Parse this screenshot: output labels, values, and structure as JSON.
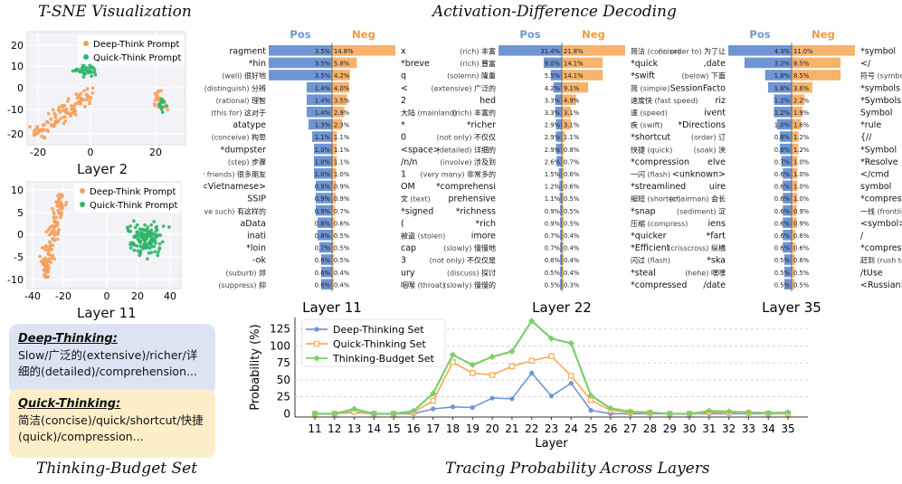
{
  "titles": {
    "tsne": "T-SNE Visualization",
    "decoding": "Activation-Difference Decoding",
    "budget": "Thinking-Budget Set",
    "tracing": "Tracing Probability Across Layers"
  },
  "tsne": {
    "legend_deep": "Deep-Think Prompt",
    "legend_quick": "Quick-Think Prompt",
    "colors": {
      "deep": "#f5a05a",
      "quick": "#2fb66a"
    },
    "panels": [
      {
        "label": "Layer 2",
        "xticks": [
          "-20",
          "0",
          "20"
        ],
        "yticks": [
          "20",
          "10",
          "0",
          "-10",
          "-20"
        ]
      },
      {
        "label": "Layer 11",
        "xticks": [
          "-40",
          "-20",
          "0",
          "20",
          "40"
        ],
        "yticks": [
          "10",
          "5",
          "0",
          "-5",
          "-10"
        ]
      }
    ]
  },
  "budget": {
    "deep_title": "Deep-Thinking:",
    "deep_text": "Slow/广泛的(extensive)/richer/详细的(detailed)/comprehension...",
    "quick_title": "Quick-Thinking:",
    "quick_text": "简洁(concise)/quick/shortcut/快捷(quick)/compression..."
  },
  "decoding": {
    "pos_label": "Pos",
    "neg_label": "Neg",
    "colors": {
      "pos": "#6f95d4",
      "neg": "#f7b26b"
    },
    "panels": [
      {
        "layer": "Layer 11",
        "rows": [
          {
            "l": "ragment",
            "lg": "",
            "pv": "3.5%",
            "p": 3.5,
            "nv": "14.8%",
            "n": 14.8,
            "r": "x",
            "rg": ""
          },
          {
            "l": "*hin",
            "lg": "",
            "pv": "3.5%",
            "p": 3.5,
            "nv": "5.8%",
            "n": 5.8,
            "r": "*breve",
            "rg": ""
          },
          {
            "l": "很好地",
            "lg": "(well)",
            "pv": "3.5%",
            "p": 3.5,
            "nv": "4.2%",
            "n": 4.2,
            "r": "q",
            "rg": ""
          },
          {
            "l": "分辨",
            "lg": "(distinguish)",
            "pv": "1.4%",
            "p": 1.4,
            "nv": "4.0%",
            "n": 4.0,
            "r": "<",
            "rg": ""
          },
          {
            "l": "理智",
            "lg": "(rational)",
            "pv": "1.4%",
            "p": 1.4,
            "nv": "3.5%",
            "n": 3.5,
            "r": "2",
            "rg": ""
          },
          {
            "l": "这对于",
            "lg": "(this for)",
            "pv": "1.4%",
            "p": 1.4,
            "nv": "2.9%",
            "n": 2.9,
            "r": "大陆",
            "rg": "(mainland)"
          },
          {
            "l": "atatype",
            "lg": "",
            "pv": "1.3%",
            "p": 1.3,
            "nv": "2.3%",
            "n": 2.3,
            "r": "*",
            "rg": ""
          },
          {
            "l": "构思",
            "lg": "(conceive)",
            "pv": "1.1%",
            "p": 1.1,
            "nv": "1.1%",
            "n": 1.1,
            "r": "0",
            "rg": ""
          },
          {
            "l": "*dumpster",
            "lg": "",
            "pv": "1.0%",
            "p": 1.0,
            "nv": "1.1%",
            "n": 1.1,
            "r": "<space>",
            "rg": ""
          },
          {
            "l": "步骤",
            "lg": "(step)",
            "pv": "1.0%",
            "p": 1.0,
            "nv": "1.1%",
            "n": 1.1,
            "r": "/n/n",
            "rg": ""
          },
          {
            "l": "很多朋友",
            "lg": "(many friends)",
            "pv": "1.0%",
            "p": 1.0,
            "nv": "1.0%",
            "n": 1.0,
            "r": "1",
            "rg": ""
          },
          {
            "l": "<Vietnamese>",
            "lg": "",
            "pv": "0.9%",
            "p": 0.9,
            "nv": "0.9%",
            "n": 0.9,
            "r": "OM",
            "rg": ""
          },
          {
            "l": "SSIP",
            "lg": "",
            "pv": "0.9%",
            "p": 0.9,
            "nv": "0.9%",
            "n": 0.9,
            "r": "文",
            "rg": "(text)"
          },
          {
            "l": "有这样的",
            "lg": "(have such)",
            "pv": "0.9%",
            "p": 0.9,
            "nv": "0.7%",
            "n": 0.7,
            "r": "*signed",
            "rg": ""
          },
          {
            "l": "aData",
            "lg": "",
            "pv": "0.8%",
            "p": 0.8,
            "nv": "0.6%",
            "n": 0.6,
            "r": "(",
            "rg": ""
          },
          {
            "l": "inati",
            "lg": "",
            "pv": "0.8%",
            "p": 0.8,
            "nv": "0.5%",
            "n": 0.5,
            "r": "被盗",
            "rg": "(stolen)"
          },
          {
            "l": "*loin",
            "lg": "",
            "pv": "0.7%",
            "p": 0.7,
            "nv": "0.5%",
            "n": 0.5,
            "r": "cap",
            "rg": ""
          },
          {
            "l": "-ok",
            "lg": "",
            "pv": "0.6%",
            "p": 0.6,
            "nv": "0.5%",
            "n": 0.5,
            "r": "3",
            "rg": ""
          },
          {
            "l": "郊",
            "lg": "(suburb)",
            "pv": "0.6%",
            "p": 0.6,
            "nv": "0.4%",
            "n": 0.4,
            "r": "ury",
            "rg": ""
          },
          {
            "l": "抑",
            "lg": "(suppress)",
            "pv": "0.6%",
            "p": 0.6,
            "nv": "0.4%",
            "n": 0.4,
            "r": "咽喉",
            "rg": "(throat)"
          }
        ]
      },
      {
        "layer": "Layer 22",
        "rows": [
          {
            "l": "丰富",
            "lg": "(rich)",
            "pv": "31.4%",
            "p": 31.4,
            "nv": "21.8%",
            "n": 21.8,
            "r": "简洁",
            "rg": "(concise)"
          },
          {
            "l": "豐富",
            "lg": "(rich)",
            "pv": "9.0%",
            "p": 9.0,
            "nv": "14.1%",
            "n": 14.1,
            "r": "*quick",
            "rg": ""
          },
          {
            "l": "隆重",
            "lg": "(solemn)",
            "pv": "5.5%",
            "p": 5.5,
            "nv": "14.1%",
            "n": 14.1,
            "r": "*swift",
            "rg": ""
          },
          {
            "l": "广泛的",
            "lg": "(extensive)",
            "pv": "4.2%",
            "p": 4.2,
            "nv": "9.1%",
            "n": 9.1,
            "r": "简",
            "rg": "(simple)"
          },
          {
            "l": "hed",
            "lg": "",
            "pv": "3.3%",
            "p": 3.3,
            "nv": "4.9%",
            "n": 4.9,
            "r": "速度快",
            "rg": "(fast speed)"
          },
          {
            "l": "丰富的",
            "lg": "(rich)",
            "pv": "3.3%",
            "p": 3.3,
            "nv": "3.1%",
            "n": 3.1,
            "r": "速",
            "rg": "(speed)"
          },
          {
            "l": "*richer",
            "lg": "",
            "pv": "2.9%",
            "p": 2.9,
            "nv": "3.1%",
            "n": 3.1,
            "r": "疾",
            "rg": "(swift)"
          },
          {
            "l": "不仅仅",
            "lg": "(not only)",
            "pv": "2.9%",
            "p": 2.9,
            "nv": "1.1%",
            "n": 1.1,
            "r": "*shortcut",
            "rg": ""
          },
          {
            "l": "详细的",
            "lg": "(detailed)",
            "pv": "2.9%",
            "p": 2.9,
            "nv": "0.8%",
            "n": 0.8,
            "r": "快捷",
            "rg": "(quick)"
          },
          {
            "l": "涉及到",
            "lg": "(involve)",
            "pv": "2.6%",
            "p": 2.6,
            "nv": "0.7%",
            "n": 0.7,
            "r": "*compression",
            "rg": ""
          },
          {
            "l": "非常多的",
            "lg": "(very many)",
            "pv": "1.5%",
            "p": 1.5,
            "nv": "0.6%",
            "n": 0.6,
            "r": "一闪",
            "rg": "(flash)"
          },
          {
            "l": "*comprehensi",
            "lg": "",
            "pv": "1.2%",
            "p": 1.2,
            "nv": "0.6%",
            "n": 0.6,
            "r": "*streamlined",
            "rg": ""
          },
          {
            "l": "prehensive",
            "lg": "",
            "pv": "1.1%",
            "p": 1.1,
            "nv": "0.5%",
            "n": 0.5,
            "r": "缩短",
            "rg": "(shorten)"
          },
          {
            "l": "*richness",
            "lg": "",
            "pv": "0.9%",
            "p": 0.9,
            "nv": "0.5%",
            "n": 0.5,
            "r": "*snap",
            "rg": ""
          },
          {
            "l": "*rich",
            "lg": "",
            "pv": "0.9%",
            "p": 0.9,
            "nv": "0.5%",
            "n": 0.5,
            "r": "压缩",
            "rg": "(compress)"
          },
          {
            "l": "imore",
            "lg": "",
            "pv": "0.7%",
            "p": 0.7,
            "nv": "0.4%",
            "n": 0.4,
            "r": "*quicker",
            "rg": ""
          },
          {
            "l": "慢慢地",
            "lg": "(slowly)",
            "pv": "0.7%",
            "p": 0.7,
            "nv": "0.4%",
            "n": 0.4,
            "r": "*Efficient",
            "rg": ""
          },
          {
            "l": "不仅仅是",
            "lg": "(not only)",
            "pv": "0.6%",
            "p": 0.6,
            "nv": "0.4%",
            "n": 0.4,
            "r": "闪过",
            "rg": "(flash)"
          },
          {
            "l": "探讨",
            "lg": "(discuss)",
            "pv": "0.5%",
            "p": 0.5,
            "nv": "0.4%",
            "n": 0.4,
            "r": "*steal",
            "rg": ""
          },
          {
            "l": "慢慢的",
            "lg": "(slowly)",
            "pv": "0.5%",
            "p": 0.5,
            "nv": "0.3%",
            "n": 0.3,
            "r": "*compressed",
            "rg": ""
          }
        ]
      },
      {
        "layer": "Layer 35",
        "rows": [
          {
            "l": "为了让",
            "lg": "(in order to)",
            "pv": "4.3%",
            "p": 4.3,
            "nv": "11.0%",
            "n": 11.0,
            "r": "*symbol",
            "rg": ""
          },
          {
            "l": ",date",
            "lg": "",
            "pv": "3.2%",
            "p": 3.2,
            "nv": "8.5%",
            "n": 8.5,
            "r": "</",
            "rg": ""
          },
          {
            "l": "下面",
            "lg": "(below)",
            "pv": "1.8%",
            "p": 1.8,
            "nv": "8.5%",
            "n": 8.5,
            "r": "符号",
            "rg": "(symbol)"
          },
          {
            "l": "SessionFacto",
            "lg": "",
            "pv": "1.6%",
            "p": 1.6,
            "nv": "3.6%",
            "n": 3.6,
            "r": "*symbols",
            "rg": ""
          },
          {
            "l": "riz",
            "lg": "",
            "pv": "1.2%",
            "p": 1.2,
            "nv": "2.2%",
            "n": 2.2,
            "r": "*Symbols",
            "rg": ""
          },
          {
            "l": "ivent",
            "lg": "",
            "pv": "1.2%",
            "p": 1.2,
            "nv": "1.9%",
            "n": 1.9,
            "r": "Symbol",
            "rg": ""
          },
          {
            "l": "*Directions",
            "lg": "",
            "pv": "1.0%",
            "p": 1.0,
            "nv": "1.6%",
            "n": 1.6,
            "r": "*rule",
            "rg": ""
          },
          {
            "l": "订",
            "lg": "(order)",
            "pv": "0.8%",
            "p": 0.8,
            "nv": "1.2%",
            "n": 1.2,
            "r": "{//",
            "rg": ""
          },
          {
            "l": "浃",
            "lg": "(soak)",
            "pv": "0.8%",
            "p": 0.8,
            "nv": "1.2%",
            "n": 1.2,
            "r": "*Symbol",
            "rg": ""
          },
          {
            "l": "elve",
            "lg": "",
            "pv": "0.7%",
            "p": 0.7,
            "nv": "1.0%",
            "n": 1.0,
            "r": "*Resolve",
            "rg": ""
          },
          {
            "l": "<unknown>",
            "lg": "",
            "pv": "0.6%",
            "p": 0.6,
            "nv": "1.0%",
            "n": 1.0,
            "r": "</cmd",
            "rg": ""
          },
          {
            "l": "uire",
            "lg": "",
            "pv": "0.6%",
            "p": 0.6,
            "nv": "1.0%",
            "n": 1.0,
            "r": "symbol",
            "rg": ""
          },
          {
            "l": "会长",
            "lg": "(chairman)",
            "pv": "0.6%",
            "p": 0.6,
            "nv": "1.0%",
            "n": 1.0,
            "r": "*compress",
            "rg": ""
          },
          {
            "l": "淀",
            "lg": "(sediment)",
            "pv": "0.6%",
            "p": 0.6,
            "nv": "0.9%",
            "n": 0.9,
            "r": "一线",
            "rg": "(frontline)"
          },
          {
            "l": "iens",
            "lg": "",
            "pv": "0.6%",
            "p": 0.6,
            "nv": "0.9%",
            "n": 0.9,
            "r": "<symbol>",
            "rg": ""
          },
          {
            "l": "*fart",
            "lg": "",
            "pv": "0.6%",
            "p": 0.6,
            "nv": "0.6%",
            "n": 0.6,
            "r": "/",
            "rg": ""
          },
          {
            "l": "纵横",
            "lg": "(crisscross)",
            "pv": "0.6%",
            "p": 0.6,
            "nv": "0.6%",
            "n": 0.6,
            "r": "*compression",
            "rg": ""
          },
          {
            "l": "*ska",
            "lg": "",
            "pv": "0.5%",
            "p": 0.5,
            "nv": "0.6%",
            "n": 0.6,
            "r": "赶到",
            "rg": "(rush to)"
          },
          {
            "l": "嘿嘿",
            "lg": "(hehe)",
            "pv": "0.5%",
            "p": 0.5,
            "nv": "0.5%",
            "n": 0.5,
            "r": "/tUse",
            "rg": ""
          },
          {
            "l": "/date",
            "lg": "",
            "pv": "0.5%",
            "p": 0.5,
            "nv": "0.5%",
            "n": 0.5,
            "r": "<Russian>",
            "rg": ""
          }
        ]
      }
    ]
  },
  "chart_data": {
    "type": "line",
    "xlabel": "Layer",
    "ylabel": "Probability (%)",
    "x": [
      11,
      12,
      13,
      14,
      15,
      16,
      17,
      18,
      19,
      20,
      21,
      22,
      23,
      24,
      25,
      26,
      27,
      28,
      29,
      30,
      31,
      32,
      33,
      34,
      35
    ],
    "yticks": [
      0,
      25,
      50,
      75,
      100,
      125
    ],
    "ylim": [
      -5,
      142
    ],
    "series": [
      {
        "name": "Deep-Thinking Set",
        "color": "#6f95d4",
        "marker": "circle",
        "values": [
          0,
          0,
          2,
          0,
          0,
          0,
          7,
          10,
          9,
          23,
          22,
          60,
          26,
          45,
          5,
          0,
          0,
          0,
          0,
          0,
          0,
          0,
          0,
          0,
          0
        ]
      },
      {
        "name": "Quick-Thinking Set",
        "color": "#f7a94f",
        "marker": "square",
        "values": [
          0,
          0,
          3,
          0,
          0,
          2,
          19,
          76,
          60,
          57,
          70,
          78,
          85,
          56,
          20,
          5,
          2,
          1,
          0,
          0,
          2,
          1,
          1,
          0,
          0
        ]
      },
      {
        "name": "Thinking-Budget Set",
        "color": "#7ccf6c",
        "marker": "diamond",
        "values": [
          0,
          0,
          7,
          0,
          0,
          4,
          30,
          87,
          72,
          84,
          92,
          137,
          111,
          104,
          27,
          8,
          3,
          2,
          0,
          0,
          4,
          3,
          2,
          1,
          2
        ]
      }
    ]
  }
}
